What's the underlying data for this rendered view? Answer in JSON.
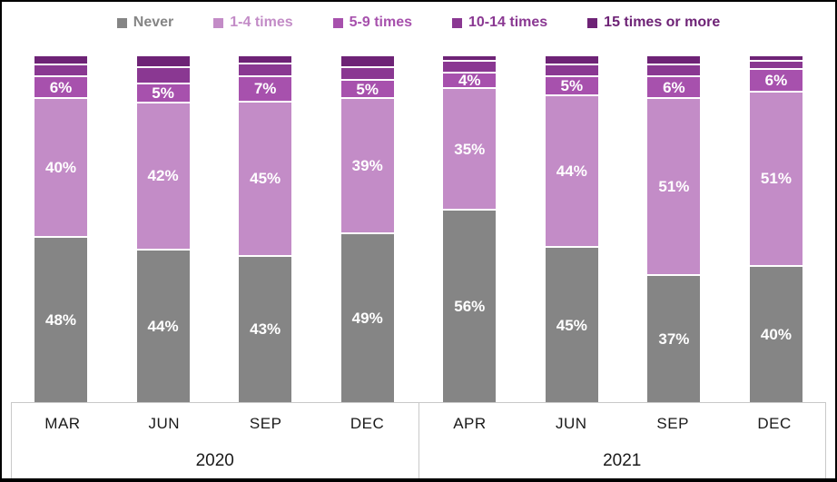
{
  "chart_data": {
    "type": "bar",
    "stacked": true,
    "orientation": "vertical",
    "value_suffix": "%",
    "ylim": [
      0,
      100
    ],
    "grid": false,
    "legend_position": "top",
    "categories": [
      "MAR",
      "JUN",
      "SEP",
      "DEC",
      "APR",
      "JUN",
      "SEP",
      "DEC"
    ],
    "year_groups": [
      {
        "label": "2020",
        "span": 4
      },
      {
        "label": "2021",
        "span": 4
      }
    ],
    "series": [
      {
        "name": "Never",
        "color": "#858585",
        "show_labels": true,
        "values": [
          48,
          44,
          43,
          49,
          56,
          45,
          37,
          40
        ]
      },
      {
        "name": "1-4 times",
        "color": "#c38cc7",
        "show_labels": true,
        "values": [
          40,
          42,
          45,
          39,
          35,
          44,
          51,
          51
        ]
      },
      {
        "name": "5-9 times",
        "color": "#a751ad",
        "show_labels": true,
        "values": [
          6,
          5,
          7,
          5,
          4,
          5,
          6,
          6
        ]
      },
      {
        "name": "10-14 times",
        "color": "#8a3892",
        "show_labels": false,
        "values": [
          3,
          4,
          3,
          3,
          3,
          3,
          3,
          2
        ]
      },
      {
        "name": "15 times or more",
        "color": "#6e2376",
        "show_labels": false,
        "values": [
          2,
          3,
          2,
          3,
          1,
          2,
          2,
          1
        ]
      }
    ]
  },
  "colors": {
    "background": "#ffffff",
    "frame_border": "#000000",
    "axis_border": "#c9c9c9",
    "bar_label_text": "#ffffff",
    "axis_text": "#1a1a1a"
  }
}
